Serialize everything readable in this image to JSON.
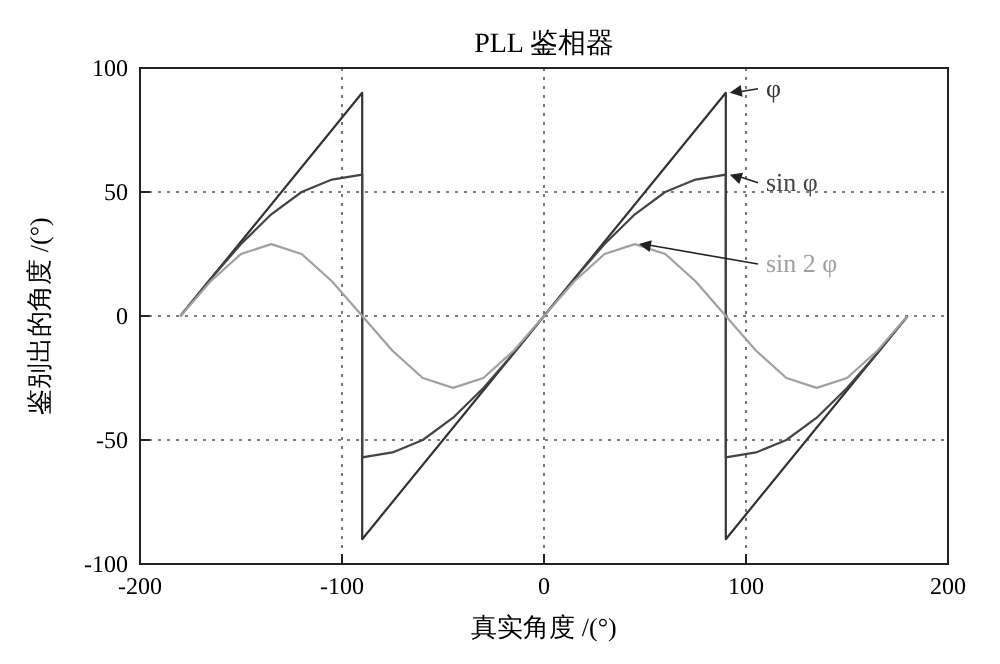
{
  "chart_data": {
    "type": "line",
    "title": "PLL 鉴相器",
    "xlabel": "真实角度 /(°)",
    "ylabel": "鉴别出的角度 /(°)",
    "xlim": [
      -200,
      200
    ],
    "ylim": [
      -100,
      100
    ],
    "xticks": [
      -200,
      -100,
      0,
      100,
      200
    ],
    "yticks": [
      -100,
      -50,
      0,
      50,
      100
    ],
    "grid": true,
    "legend": false,
    "marker": "none",
    "line_style": "solid",
    "series": [
      {
        "name": "φ",
        "color": "#333333",
        "x": [
          -180,
          -90,
          -90,
          90,
          90,
          180
        ],
        "values": [
          0,
          90,
          -90,
          90,
          -90,
          0
        ]
      },
      {
        "name": "sin φ",
        "color": "#444444",
        "x": [
          -180,
          -165,
          -150,
          -135,
          -120,
          -105,
          -90,
          -90,
          -75,
          -60,
          -45,
          -30,
          -15,
          0,
          15,
          30,
          45,
          60,
          75,
          90,
          90,
          105,
          120,
          135,
          150,
          165,
          180
        ],
        "values": [
          0,
          15,
          29,
          41,
          50,
          55,
          57,
          -57,
          -55,
          -50,
          -41,
          -29,
          -15,
          0,
          15,
          29,
          41,
          50,
          55,
          57,
          -57,
          -55,
          -50,
          -41,
          -29,
          -15,
          0
        ]
      },
      {
        "name": "sin 2 φ",
        "color": "#a0a0a0",
        "x": [
          -180,
          -165,
          -150,
          -135,
          -120,
          -105,
          -90,
          -75,
          -60,
          -45,
          -30,
          -15,
          0,
          15,
          30,
          45,
          60,
          75,
          90,
          105,
          120,
          135,
          150,
          165,
          180
        ],
        "values": [
          0,
          14,
          25,
          29,
          25,
          14,
          0,
          -14,
          -25,
          -29,
          -25,
          -14,
          0,
          14,
          25,
          29,
          25,
          14,
          0,
          -14,
          -25,
          -29,
          -25,
          -14,
          0
        ]
      }
    ]
  }
}
